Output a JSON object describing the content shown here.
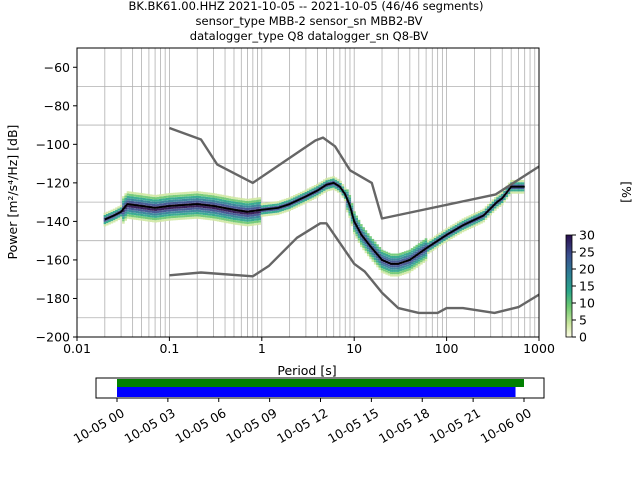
{
  "header": {
    "line1": "BK.BK61.00.HHZ   2021-10-05 -- 2021-10-05  (46/46 segments)",
    "line2": "sensor_type MBB-2 sensor_sn MBB2-BV",
    "line3": "datalogger_type Q8 datalogger_sn Q8-BV"
  },
  "chart_data": [
    {
      "type": "heatmap",
      "title": "BK.BK61.00.HHZ   2021-10-05 -- 2021-10-05  (46/46 segments)",
      "xlabel": "Period [s]",
      "ylabel": "Power [m²/s⁴/Hz] [dB]",
      "xscale": "log",
      "xlim": [
        0.01,
        1000
      ],
      "ylim": [
        -200,
        -50
      ],
      "xticks": [
        "0.01",
        "0.1",
        "1",
        "10",
        "100",
        "1000"
      ],
      "yticks": [
        "−60",
        "−80",
        "−100",
        "−120",
        "−140",
        "−160",
        "−180",
        "−200"
      ],
      "grid": true,
      "colorbar": {
        "label": "[%]",
        "range": [
          0,
          30
        ],
        "ticks": [
          "0",
          "5",
          "10",
          "15",
          "20",
          "25",
          "30"
        ]
      },
      "series": [
        {
          "name": "",
          "color": "#666666",
          "x": [
            0.1,
            0.22,
            0.33,
            0.8,
            3.8,
            4.6,
            6.2,
            9.0,
            15.5,
            20,
            340,
            1000
          ],
          "y": [
            -91.5,
            -97.5,
            -110.5,
            -120,
            -98,
            -96.5,
            -101,
            -113.5,
            -120,
            -138.5,
            -126,
            -111.5
          ]
        },
        {
          "name": "",
          "color": "#666666",
          "x": [
            0.1,
            0.22,
            0.8,
            1.2,
            2.4,
            4.3,
            5.0,
            6.0,
            10,
            13,
            20,
            30,
            50,
            80,
            100,
            150,
            330,
            600,
            1000
          ],
          "y": [
            -168,
            -166.5,
            -168.5,
            -163,
            -148.5,
            -141,
            -141,
            -146.5,
            -162,
            -166,
            -177,
            -185,
            -187.5,
            -187.5,
            -185,
            -185,
            -187.5,
            -184.5,
            -178
          ]
        },
        {
          "name": "",
          "color": "#000000",
          "x": [
            0.02,
            0.025,
            0.03,
            0.035,
            0.05,
            0.07,
            0.1,
            0.2,
            0.3,
            0.5,
            0.7,
            1,
            1.5,
            2,
            3,
            4,
            5,
            6,
            7,
            8,
            9,
            10,
            12,
            15,
            20,
            25,
            30,
            40,
            60,
            100,
            150,
            250,
            350,
            400,
            500,
            700
          ],
          "y": [
            -139,
            -137,
            -135,
            -131,
            -132,
            -133,
            -132,
            -131,
            -132,
            -134,
            -135,
            -134,
            -133,
            -131,
            -127,
            -124,
            -121,
            -120,
            -122,
            -126,
            -132,
            -140,
            -147,
            -153,
            -160,
            -162,
            -162,
            -160,
            -154,
            -147,
            -142,
            -137,
            -130,
            -128,
            -122,
            -122
          ]
        }
      ]
    },
    {
      "type": "bar",
      "xlabel": "",
      "ylabel": "",
      "xticks": [
        "10-05 00",
        "10-05 03",
        "10-05 06",
        "10-05 09",
        "10-05 12",
        "10-05 15",
        "10-05 18",
        "10-05 21",
        "10-06 00"
      ],
      "series": [
        {
          "name": "",
          "color": "#008000",
          "start": "10-05 00",
          "end": "10-06 00"
        },
        {
          "name": "",
          "color": "#0000ff",
          "start": "10-05 00",
          "end": "10-05 23:30"
        }
      ]
    }
  ]
}
